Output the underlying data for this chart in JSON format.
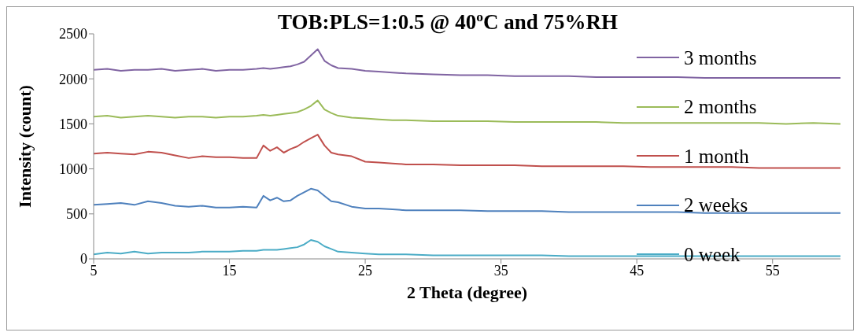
{
  "chart_data": {
    "type": "line",
    "title": "TOB:PLS=1:0.5 @ 40$^{o}$C and 75%RH",
    "xlabel": "2 Theta (degree)",
    "ylabel": "Intensity (count)",
    "x": [
      5,
      6,
      7,
      8,
      9,
      10,
      11,
      12,
      13,
      14,
      15,
      16,
      17,
      17.5,
      18,
      18.5,
      19,
      19.5,
      20,
      20.5,
      21,
      21.5,
      22,
      22.5,
      23,
      24,
      25,
      26,
      27,
      28,
      30,
      32,
      34,
      36,
      38,
      40,
      42,
      44,
      46,
      48,
      50,
      52,
      54,
      56,
      58,
      60
    ],
    "series": [
      {
        "name": "3 months",
        "color": "#8064a2",
        "values": [
          2100,
          2110,
          2090,
          2100,
          2100,
          2110,
          2090,
          2100,
          2110,
          2090,
          2100,
          2100,
          2110,
          2120,
          2110,
          2120,
          2130,
          2140,
          2160,
          2190,
          2260,
          2330,
          2200,
          2150,
          2120,
          2110,
          2090,
          2080,
          2070,
          2060,
          2050,
          2040,
          2040,
          2030,
          2030,
          2030,
          2020,
          2020,
          2020,
          2020,
          2010,
          2010,
          2010,
          2010,
          2010,
          2010
        ]
      },
      {
        "name": "2 months",
        "color": "#9bbb59",
        "values": [
          1580,
          1590,
          1570,
          1580,
          1590,
          1580,
          1570,
          1580,
          1580,
          1570,
          1580,
          1580,
          1590,
          1600,
          1590,
          1600,
          1610,
          1620,
          1630,
          1660,
          1700,
          1760,
          1660,
          1620,
          1590,
          1570,
          1560,
          1550,
          1540,
          1540,
          1530,
          1530,
          1530,
          1520,
          1520,
          1520,
          1520,
          1510,
          1510,
          1510,
          1510,
          1510,
          1510,
          1500,
          1510,
          1500
        ]
      },
      {
        "name": "1 month",
        "color": "#c0504d",
        "values": [
          1170,
          1180,
          1170,
          1160,
          1190,
          1180,
          1150,
          1120,
          1140,
          1130,
          1130,
          1120,
          1120,
          1260,
          1200,
          1240,
          1180,
          1220,
          1250,
          1300,
          1340,
          1380,
          1260,
          1180,
          1160,
          1140,
          1080,
          1070,
          1060,
          1050,
          1050,
          1040,
          1040,
          1040,
          1030,
          1030,
          1030,
          1030,
          1020,
          1020,
          1020,
          1020,
          1010,
          1010,
          1010,
          1010
        ]
      },
      {
        "name": "2 weeks",
        "color": "#4f81bd",
        "values": [
          600,
          610,
          620,
          600,
          640,
          620,
          590,
          580,
          590,
          570,
          570,
          580,
          570,
          700,
          650,
          680,
          640,
          650,
          700,
          740,
          780,
          760,
          700,
          640,
          630,
          580,
          560,
          560,
          550,
          540,
          540,
          540,
          530,
          530,
          530,
          520,
          520,
          520,
          520,
          520,
          510,
          510,
          510,
          510,
          510,
          510
        ]
      },
      {
        "name": "0 week",
        "color": "#4bacc6",
        "values": [
          50,
          70,
          60,
          80,
          60,
          70,
          70,
          70,
          80,
          80,
          80,
          90,
          90,
          100,
          100,
          100,
          110,
          120,
          130,
          160,
          210,
          190,
          140,
          110,
          80,
          70,
          60,
          50,
          50,
          50,
          40,
          40,
          40,
          40,
          40,
          30,
          30,
          30,
          30,
          30,
          30,
          30,
          30,
          30,
          30,
          30
        ]
      }
    ],
    "xlim": [
      5,
      60
    ],
    "xticks": [
      5,
      15,
      25,
      35,
      45,
      55
    ],
    "ylim": [
      0,
      2500
    ],
    "yticks": [
      0,
      500,
      1000,
      1500,
      2000,
      2500
    ],
    "legend": "right",
    "marker": "none",
    "line_style": "solid"
  }
}
